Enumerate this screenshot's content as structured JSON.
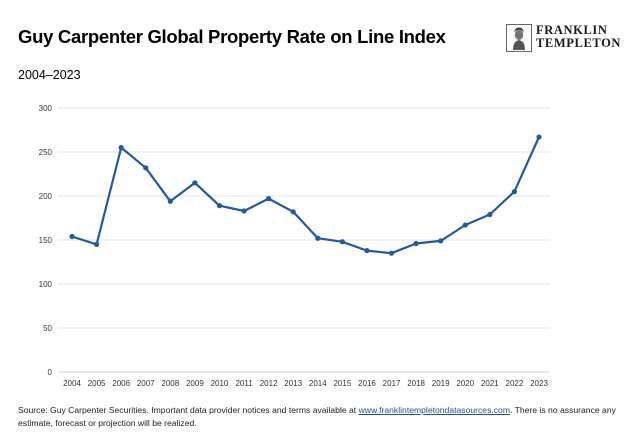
{
  "header": {
    "title": "Guy Carpenter Global Property Rate on Line Index",
    "subtitle": "2004–2023"
  },
  "logo": {
    "line1": "FRANKLIN",
    "line2": "TEMPLETON",
    "icon": "franklin-portrait-icon"
  },
  "colors": {
    "series": "#1f5aa6",
    "grid": "#e3e3e3",
    "axis": "#d0d0d0"
  },
  "chart_data": {
    "type": "line",
    "title": "Guy Carpenter Global Property Rate on Line Index",
    "subtitle": "2004–2023",
    "xlabel": "",
    "ylabel": "",
    "ylim": [
      0,
      300
    ],
    "yticks": [
      0,
      50,
      100,
      150,
      200,
      250,
      300
    ],
    "grid": true,
    "categories": [
      "2004",
      "2005",
      "2006",
      "2007",
      "2008",
      "2009",
      "2010",
      "2011",
      "2012",
      "2013",
      "2014",
      "2015",
      "2016",
      "2017",
      "2018",
      "2019",
      "2020",
      "2021",
      "2022",
      "2023"
    ],
    "series": [
      {
        "name": "Global Property Rate on Line Index",
        "values": [
          154,
          145,
          255,
          232,
          194,
          215,
          189,
          183,
          197,
          182,
          152,
          148,
          138,
          135,
          146,
          149,
          167,
          179,
          205,
          267
        ]
      }
    ]
  },
  "footer": {
    "source_prefix": "Source: Guy Carpenter Securities. Important data provider notices and terms available at ",
    "source_link": "www.franklintempletondatasources.com",
    "source_suffix": ". There is no assurance any estimate, forecast or projection will be realized."
  }
}
